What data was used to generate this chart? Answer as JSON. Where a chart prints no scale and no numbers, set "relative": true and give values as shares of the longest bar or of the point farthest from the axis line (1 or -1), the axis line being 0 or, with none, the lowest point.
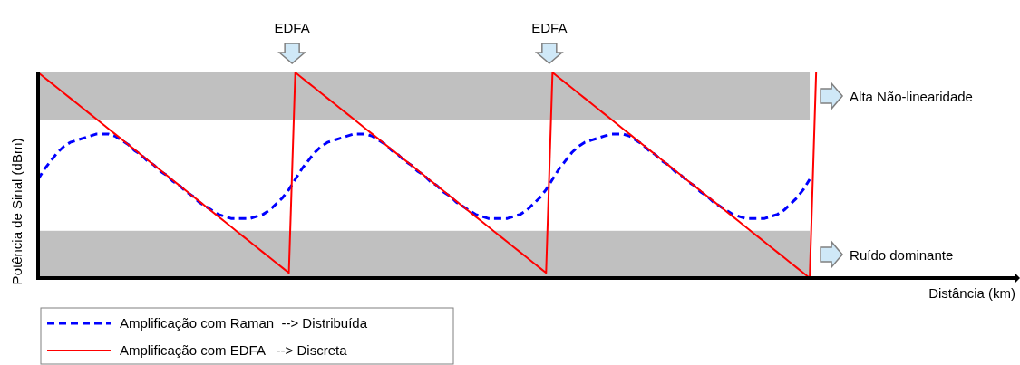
{
  "chart_data": {
    "type": "line",
    "relative": true,
    "xlabel": "Distância (km)",
    "ylabel": "Potência de Sinal (dBm)",
    "grid": false,
    "legend": "bottom left",
    "marker": "none",
    "categories": [
      null,
      null,
      null,
      null,
      null,
      null,
      null,
      null,
      null,
      null,
      null,
      null,
      null,
      null,
      null,
      null,
      null,
      null,
      null,
      null,
      null,
      null,
      null,
      null,
      null,
      null,
      null,
      null,
      null,
      null,
      null,
      null,
      null,
      null,
      null,
      null,
      null,
      null,
      null,
      null,
      null,
      null,
      null,
      null,
      null,
      null,
      null,
      null,
      null,
      null,
      null,
      null,
      null,
      null,
      null,
      null,
      null,
      null,
      null,
      null,
      null,
      null,
      null,
      null,
      null,
      null,
      null,
      null,
      null,
      null,
      null,
      null,
      null,
      null,
      null,
      null,
      null,
      null,
      null,
      null,
      null,
      null,
      null,
      null,
      null,
      null,
      null,
      null,
      null,
      null,
      null,
      null,
      null,
      null,
      null,
      null,
      null,
      null,
      null,
      null,
      null,
      null,
      null,
      null,
      null,
      null,
      null,
      null,
      null,
      null,
      null,
      null,
      null,
      null,
      null,
      null,
      null,
      null,
      null,
      null,
      null,
      null,
      null,
      null,
      null,
      null,
      null,
      null,
      null,
      null,
      null,
      null,
      null,
      null,
      null,
      null,
      null,
      null,
      null,
      null,
      null,
      null,
      null,
      null,
      null,
      null,
      null,
      null,
      null,
      null,
      null,
      null,
      null
    ],
    "series": [
      {
        "name": "Amplificação com Raman  --> Distribuída",
        "color": "#0000ff",
        "line_style": "dashed",
        "values": [
          0.48,
          0.53,
          0.57,
          0.61,
          0.64,
          0.66,
          0.67,
          0.68,
          0.69,
          0.7,
          0.7,
          0.7,
          0.69,
          0.67,
          0.65,
          0.62,
          0.6,
          0.57,
          0.55,
          0.52,
          0.5,
          0.47,
          0.45,
          0.42,
          0.4,
          0.37,
          0.35,
          0.33,
          0.31,
          0.3,
          0.29,
          0.29,
          0.29,
          0.29,
          0.3,
          0.31,
          0.33,
          0.36,
          0.39,
          0.43,
          0.48,
          0.53,
          0.57,
          0.61,
          0.64,
          0.66,
          0.67,
          0.68,
          0.69,
          0.7,
          0.7,
          0.7,
          0.69,
          0.67,
          0.65,
          0.62,
          0.6,
          0.57,
          0.55,
          0.52,
          0.5,
          0.47,
          0.45,
          0.42,
          0.4,
          0.37,
          0.35,
          0.33,
          0.31,
          0.3,
          0.29,
          0.29,
          0.29,
          0.29,
          0.3,
          0.31,
          0.33,
          0.36,
          0.39,
          0.43,
          0.48,
          0.53,
          0.57,
          0.61,
          0.64,
          0.66,
          0.67,
          0.68,
          0.69,
          0.7,
          0.7,
          0.7,
          0.69,
          0.67,
          0.65,
          0.62,
          0.6,
          0.57,
          0.55,
          0.52,
          0.5,
          0.47,
          0.45,
          0.42,
          0.4,
          0.37,
          0.35,
          0.33,
          0.31,
          0.3,
          0.29,
          0.29,
          0.29,
          0.29,
          0.3,
          0.31,
          0.33,
          0.36,
          0.39,
          0.43,
          0.48,
          null,
          null,
          null,
          null,
          null,
          null,
          null,
          null,
          null,
          null,
          null,
          null,
          null,
          null,
          null,
          null,
          null,
          null,
          null,
          null,
          null,
          null,
          null,
          null,
          null,
          null,
          null,
          null,
          null,
          null,
          null,
          null
        ]
      },
      {
        "name": "Amplificação com EDFA   --> Discreta",
        "color": "#ff0000",
        "line_style": "solid",
        "values": [
          1,
          0.975,
          0.95,
          0.925,
          0.9,
          0.875,
          0.85,
          0.825,
          0.8,
          0.775,
          0.75,
          0.725,
          0.7,
          0.675,
          0.65,
          0.625,
          0.6,
          0.575,
          0.55,
          0.525,
          0.5,
          0.475,
          0.45,
          0.425,
          0.4,
          0.375,
          0.35,
          0.325,
          0.3,
          0.275,
          0.25,
          0.225,
          0.2,
          0.175,
          0.15,
          0.125,
          0.1,
          0.075,
          0.05,
          0.025,
          1,
          0.975,
          0.95,
          0.925,
          0.9,
          0.875,
          0.85,
          0.825,
          0.8,
          0.775,
          0.75,
          0.725,
          0.7,
          0.675,
          0.65,
          0.625,
          0.6,
          0.575,
          0.55,
          0.525,
          0.5,
          0.475,
          0.45,
          0.425,
          0.4,
          0.375,
          0.35,
          0.325,
          0.3,
          0.275,
          0.25,
          0.225,
          0.2,
          0.175,
          0.15,
          0.125,
          0.1,
          0.075,
          0.05,
          0.025,
          1,
          0.975,
          0.95,
          0.925,
          0.9,
          0.875,
          0.85,
          0.825,
          0.8,
          0.775,
          0.75,
          0.725,
          0.7,
          0.675,
          0.65,
          0.625,
          0.6,
          0.575,
          0.55,
          0.525,
          0.5,
          0.475,
          0.45,
          0.425,
          0.4,
          0.375,
          0.35,
          0.325,
          0.3,
          0.275,
          0.25,
          0.225,
          0.2,
          0.175,
          0.15,
          0.125,
          0.1,
          0.075,
          0.05,
          0.025,
          0,
          1,
          null,
          null,
          null,
          null,
          null,
          null,
          null,
          null,
          null,
          null,
          null,
          null,
          null,
          null,
          null,
          null,
          null,
          null,
          null,
          null,
          null,
          null,
          null,
          null,
          null,
          null,
          null,
          null,
          null,
          null,
          null
        ]
      }
    ],
    "annotations": [
      "EDFA",
      "EDFA"
    ],
    "bands": [
      {
        "axis": "y",
        "from": 0.77,
        "to": 1,
        "label": "Alta Não-linearidade",
        "color": "#c0c0c0"
      },
      {
        "axis": "y",
        "from": 0,
        "to": 0.23,
        "label": "Ruído dominante",
        "color": "#c0c0c0"
      }
    ]
  }
}
